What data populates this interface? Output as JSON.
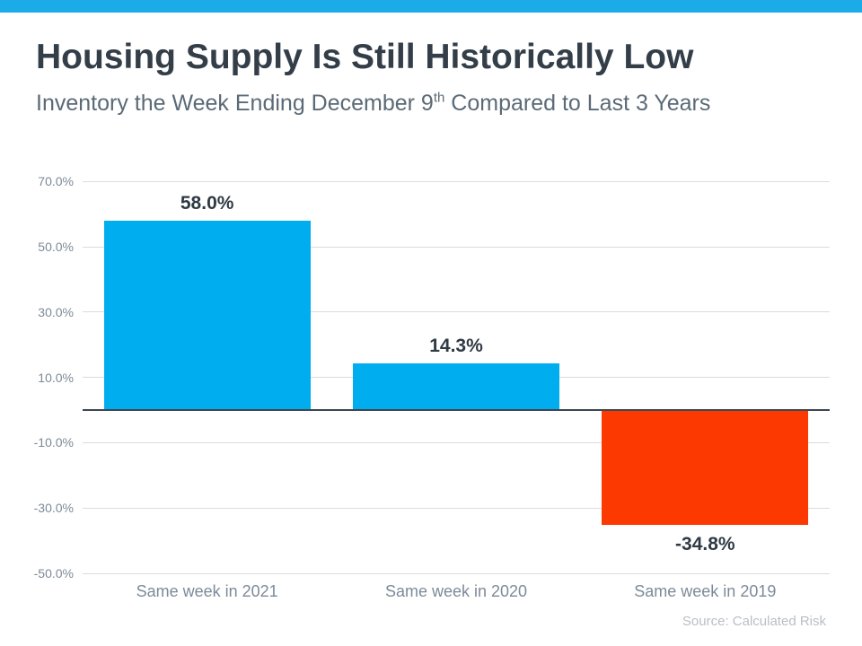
{
  "accent": {
    "top_bar_color": "#1babe9"
  },
  "header": {
    "title": "Housing Supply Is Still Historically Low",
    "subtitle_before": "Inventory the Week Ending December 9",
    "subtitle_sup": "th",
    "subtitle_after": " Compared to Last 3 Years"
  },
  "chart_data": {
    "type": "bar",
    "categories": [
      "Same week in 2021",
      "Same week in 2020",
      "Same week in 2019"
    ],
    "values": [
      58.0,
      14.3,
      -34.8
    ],
    "value_labels": [
      "58.0%",
      "14.3%",
      "-34.8%"
    ],
    "bar_colors": [
      "#00aeef",
      "#00aeef",
      "#fb3900"
    ],
    "positive_color": "#00aeef",
    "negative_color": "#fb3900",
    "yticks": [
      70,
      50,
      30,
      10,
      -10,
      -30,
      -50
    ],
    "ytick_labels": [
      "70.0%",
      "50.0%",
      "30.0%",
      "10.0%",
      "-10.0%",
      "-30.0%",
      "-50.0%"
    ],
    "ylim": [
      -50,
      70
    ],
    "grid": true,
    "legend": false,
    "gridline_color": "#d9dbdd",
    "zero_axis_color": "#3c4650",
    "title": "Housing Supply Is Still Historically Low",
    "xlabel": "",
    "ylabel": ""
  },
  "footer": {
    "source": "Source: Calculated Risk"
  }
}
